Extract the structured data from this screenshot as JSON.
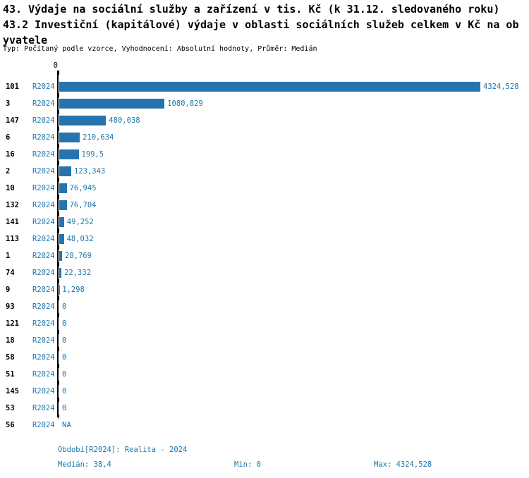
{
  "title": {
    "line1": "43. Výdaje na sociální služby a zařízení v tis. Kč (k 31.12. sledovaného roku)",
    "line2": "43.2 Investiční (kapitálové) výdaje v oblasti sociálních služeb celkem v Kč na obyvatele"
  },
  "subtitle": "Typ: Počítaný podle vzorce, Vyhodnocení: Absolutní hodnoty, Průměr: Medián",
  "axis": {
    "zero_label": "0"
  },
  "chart_data": {
    "type": "bar",
    "orientation": "horizontal",
    "title": "43.2 Investiční (kapitálové) výdaje v oblasti sociálních služeb celkem v Kč na obyvatele",
    "series_label": "R2024",
    "categories": [
      "101",
      "3",
      "147",
      "6",
      "16",
      "2",
      "10",
      "132",
      "141",
      "113",
      "1",
      "74",
      "9",
      "93",
      "121",
      "18",
      "58",
      "51",
      "145",
      "53",
      "56"
    ],
    "values": [
      4324.528,
      1080.829,
      480.038,
      210.634,
      199.5,
      123.343,
      76.945,
      76.704,
      49.252,
      48.032,
      28.769,
      22.332,
      1.298,
      0,
      0,
      0,
      0,
      0,
      0,
      0,
      null
    ],
    "value_labels": [
      "4324,528",
      "1080,829",
      "480,038",
      "210,634",
      "199,5",
      "123,343",
      "76,945",
      "76,704",
      "49,252",
      "48,032",
      "28,769",
      "22,332",
      "1,298",
      "0",
      "0",
      "0",
      "0",
      "0",
      "0",
      "0",
      "NA"
    ],
    "xlim": [
      0,
      4324.528
    ],
    "xlabel": "",
    "ylabel": "",
    "grid": false,
    "legend": false,
    "median": 38.4,
    "min": 0,
    "max": 4324.528
  },
  "footer": {
    "period": "Období[R2024]: Realita - 2024",
    "median": "Medián: 38,4",
    "min": "Min: 0",
    "max": "Max: 4324,528"
  },
  "colors": {
    "bar": "#2674ae",
    "blue_text": "#1b78ad",
    "axis": "#000000"
  }
}
